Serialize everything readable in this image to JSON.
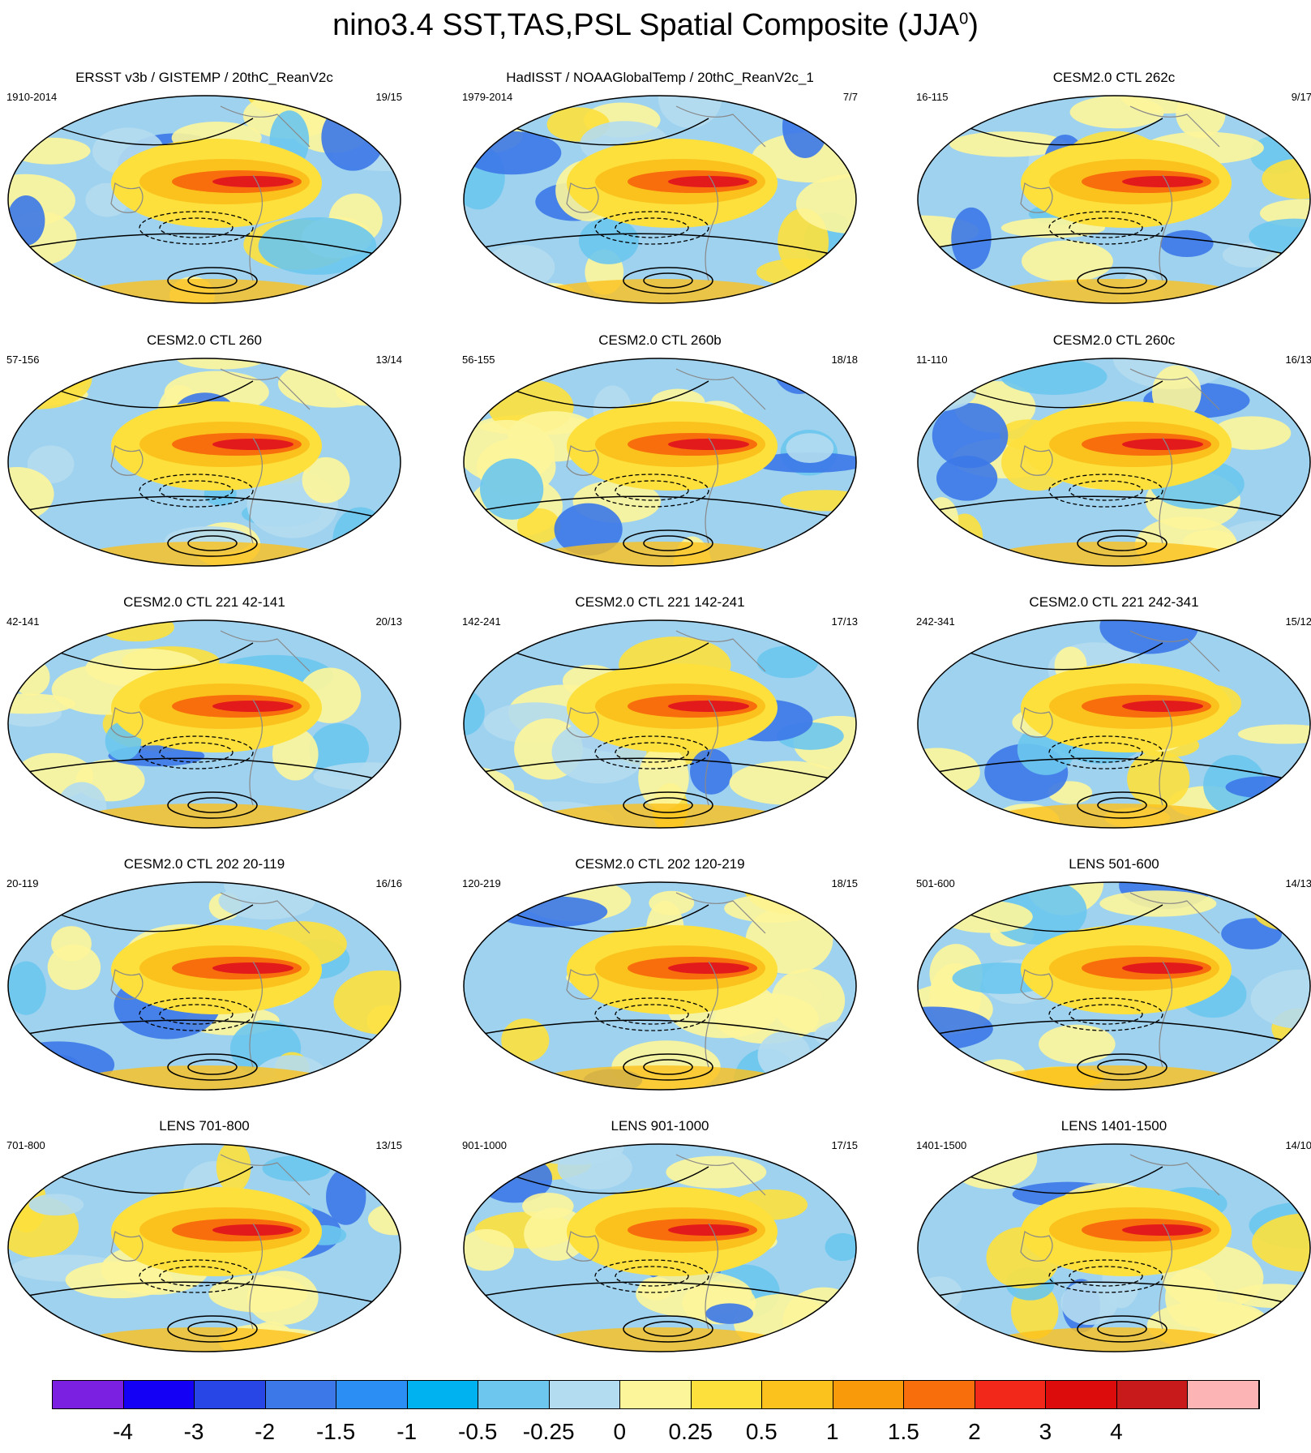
{
  "title": {
    "main": "nino3.4 SST,TAS,PSL Spatial Composite (JJA",
    "superscript": "0",
    "close": ")"
  },
  "panels": [
    {
      "title": "ERSST v3b / GISTEMP / 20thC_ReanV2c",
      "left": "1910-2014",
      "right": "19/15"
    },
    {
      "title": "HadISST / NOAAGlobalTemp / 20thC_ReanV2c_1",
      "left": "1979-2014",
      "right": "7/7"
    },
    {
      "title": "CESM2.0 CTL 262c",
      "left": "16-115",
      "right": "9/17"
    },
    {
      "title": "CESM2.0 CTL 260",
      "left": "57-156",
      "right": "13/14"
    },
    {
      "title": "CESM2.0 CTL 260b",
      "left": "56-155",
      "right": "18/18"
    },
    {
      "title": "CESM2.0 CTL 260c",
      "left": "11-110",
      "right": "16/13"
    },
    {
      "title": "CESM2.0 CTL 221 42-141",
      "left": "42-141",
      "right": "20/13"
    },
    {
      "title": "CESM2.0 CTL 221 142-241",
      "left": "142-241",
      "right": "17/13"
    },
    {
      "title": "CESM2.0 CTL 221 242-341",
      "left": "242-341",
      "right": "15/12"
    },
    {
      "title": "CESM2.0 CTL 202 20-119",
      "left": "20-119",
      "right": "16/16"
    },
    {
      "title": "CESM2.0 CTL 202 120-219",
      "left": "120-219",
      "right": "18/15"
    },
    {
      "title": "LENS 501-600",
      "left": "501-600",
      "right": "14/13"
    },
    {
      "title": "LENS 701-800",
      "left": "701-800",
      "right": "13/15"
    },
    {
      "title": "LENS 901-1000",
      "left": "901-1000",
      "right": "17/15"
    },
    {
      "title": "LENS 1401-1500",
      "left": "1401-1500",
      "right": "14/10"
    }
  ],
  "colorbar": {
    "colors": [
      "#7b1fe0",
      "#1400f5",
      "#2846e6",
      "#3c78e8",
      "#2b8ef5",
      "#00b2f0",
      "#6cc6ee",
      "#b4dcf0",
      "#fdf59a",
      "#fde03c",
      "#fbc11c",
      "#f99a0a",
      "#f86d0c",
      "#f2281a",
      "#dd0c0c",
      "#c81a1a",
      "#fcb4b4"
    ],
    "labels": [
      "-4",
      "-3",
      "-2",
      "-1.5",
      "-1",
      "-0.5",
      "-0.25",
      "0",
      "0.25",
      "0.5",
      "1",
      "1.5",
      "2",
      "3",
      "4"
    ]
  }
}
